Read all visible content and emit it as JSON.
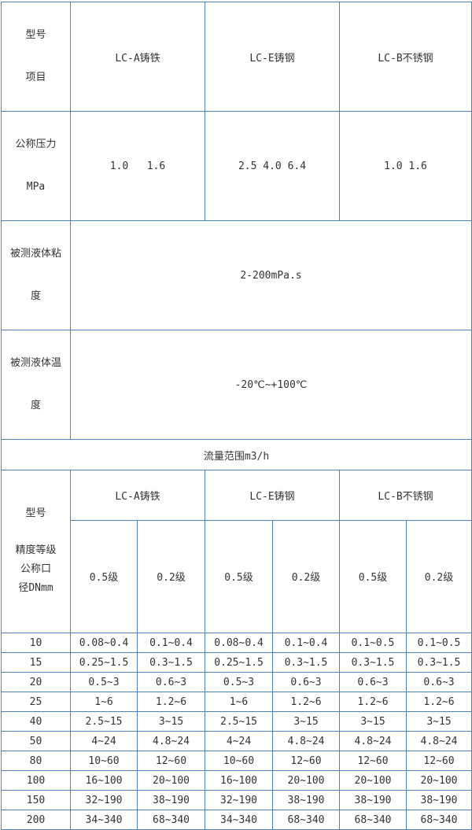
{
  "colors": {
    "border": "#4f81bd",
    "text": "#333333",
    "bg": "#ffffff"
  },
  "section1": {
    "corner": [
      "型号",
      "项目"
    ],
    "col_headers": [
      "LC-A铸铁",
      "LC-E铸钢",
      "LC-B不锈钢"
    ],
    "pressure": {
      "label": [
        "公称压力",
        "MPa"
      ],
      "values": [
        "1.0   1.6",
        "2.5 4.0 6.4",
        "1.0 1.6"
      ]
    },
    "viscosity": {
      "label": [
        "被测液体粘",
        "度"
      ],
      "value": "2-200mPa.s"
    },
    "temperature": {
      "label": [
        "被测液体温",
        "度"
      ],
      "value": "-20℃~+100℃"
    },
    "flow_range_title": "流量范围m3/h"
  },
  "section2": {
    "corner_model": "型号",
    "corner_lines": [
      "精度等级",
      "公称口",
      "径DNmm"
    ],
    "col_headers": [
      "LC-A铸铁",
      "LC-E铸钢",
      "LC-B不锈钢"
    ],
    "accuracy_headers": [
      "0.5级",
      "0.2级",
      "0.5级",
      "0.2级",
      "0.5级",
      "0.2级"
    ],
    "rows": [
      {
        "dn": "10",
        "values": [
          "0.08~0.4",
          "0.1~0.4",
          "0.08~0.4",
          "0.1~0.4",
          "0.1~0.5",
          "0.1~0.5"
        ]
      },
      {
        "dn": "15",
        "values": [
          "0.25~1.5",
          "0.3~1.5",
          "0.25~1.5",
          "0.3~1.5",
          "0.3~1.5",
          "0.3~1.5"
        ]
      },
      {
        "dn": "20",
        "values": [
          "0.5~3",
          "0.6~3",
          "0.5~3",
          "0.6~3",
          "0.6~3",
          "0.6~3"
        ]
      },
      {
        "dn": "25",
        "values": [
          "1~6",
          "1.2~6",
          "1~6",
          "1.2~6",
          "1.2~6",
          "1.2~6"
        ]
      },
      {
        "dn": "40",
        "values": [
          "2.5~15",
          "3~15",
          "2.5~15",
          "3~15",
          "3~15",
          "3~15"
        ]
      },
      {
        "dn": "50",
        "values": [
          "4~24",
          "4.8~24",
          "4~24",
          "4.8~24",
          "4.8~24",
          "4.8~24"
        ]
      },
      {
        "dn": "80",
        "values": [
          "10~60",
          "12~60",
          "10~60",
          "12~60",
          "12~60",
          "12~60"
        ]
      },
      {
        "dn": "100",
        "values": [
          "16~100",
          "20~100",
          "16~100",
          "20~100",
          "20~100",
          "20~100"
        ]
      },
      {
        "dn": "150",
        "values": [
          "32~190",
          "38~190",
          "32~190",
          "38~190",
          "38~190",
          "38~190"
        ]
      },
      {
        "dn": "200",
        "values": [
          "34~340",
          "68~340",
          "34~340",
          "68~340",
          "68~340",
          "68~340"
        ]
      }
    ]
  }
}
